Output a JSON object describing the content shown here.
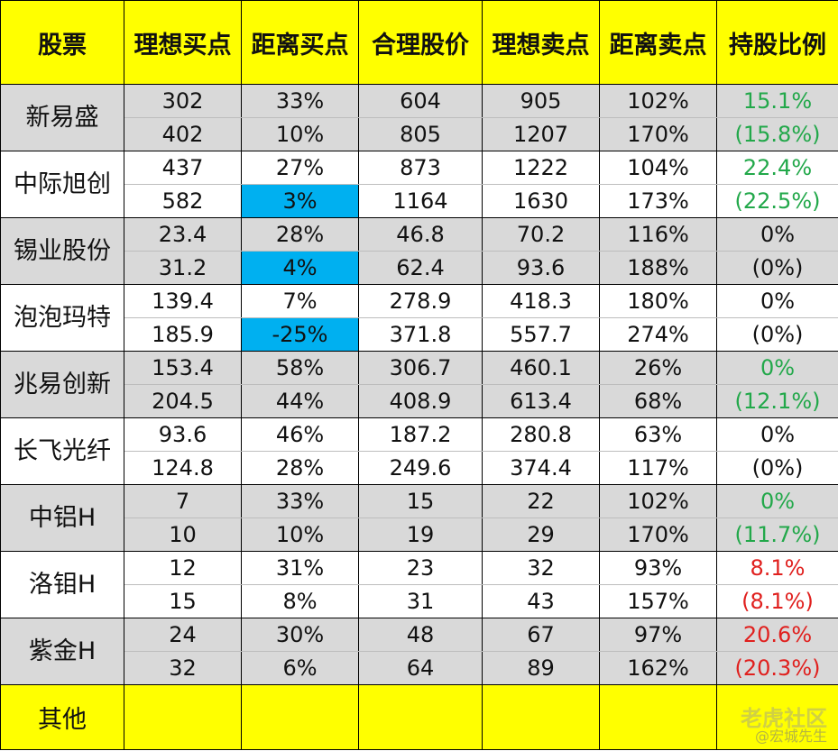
{
  "headers": [
    "股票",
    "理想买点",
    "距离买点",
    "合理股价",
    "理想卖点",
    "距离卖点",
    "持股比例"
  ],
  "stocks": [
    {
      "name": "新易盛",
      "shade": "grey",
      "ratio_color": "green",
      "rows": [
        {
          "buy": "302",
          "dist_buy": "33%",
          "fair": "604",
          "sell": "905",
          "dist_sell": "102%",
          "ratio": "15.1%"
        },
        {
          "buy": "402",
          "dist_buy": "10%",
          "fair": "805",
          "sell": "1207",
          "dist_sell": "170%",
          "ratio": "(15.8%)"
        }
      ]
    },
    {
      "name": "中际旭创",
      "shade": "white",
      "ratio_color": "green",
      "rows": [
        {
          "buy": "437",
          "dist_buy": "27%",
          "fair": "873",
          "sell": "1222",
          "dist_sell": "104%",
          "ratio": "22.4%"
        },
        {
          "buy": "582",
          "dist_buy": "3%",
          "fair": "1164",
          "sell": "1630",
          "dist_sell": "173%",
          "ratio": "(22.5%)",
          "highlight": true
        }
      ]
    },
    {
      "name": "锡业股份",
      "shade": "grey",
      "ratio_color": "black",
      "rows": [
        {
          "buy": "23.4",
          "dist_buy": "28%",
          "fair": "46.8",
          "sell": "70.2",
          "dist_sell": "116%",
          "ratio": "0%"
        },
        {
          "buy": "31.2",
          "dist_buy": "4%",
          "fair": "62.4",
          "sell": "93.6",
          "dist_sell": "188%",
          "ratio": "(0%)",
          "highlight": true
        }
      ]
    },
    {
      "name": "泡泡玛特",
      "shade": "white",
      "ratio_color": "black",
      "rows": [
        {
          "buy": "139.4",
          "dist_buy": "7%",
          "fair": "278.9",
          "sell": "418.3",
          "dist_sell": "180%",
          "ratio": "0%"
        },
        {
          "buy": "185.9",
          "dist_buy": "-25%",
          "fair": "371.8",
          "sell": "557.7",
          "dist_sell": "274%",
          "ratio": "(0%)",
          "highlight": true
        }
      ]
    },
    {
      "name": "兆易创新",
      "shade": "grey",
      "ratio_color": "green",
      "rows": [
        {
          "buy": "153.4",
          "dist_buy": "58%",
          "fair": "306.7",
          "sell": "460.1",
          "dist_sell": "26%",
          "ratio": "0%"
        },
        {
          "buy": "204.5",
          "dist_buy": "44%",
          "fair": "408.9",
          "sell": "613.4",
          "dist_sell": "68%",
          "ratio": "(12.1%)"
        }
      ]
    },
    {
      "name": "长飞光纤",
      "shade": "white",
      "ratio_color": "black",
      "rows": [
        {
          "buy": "93.6",
          "dist_buy": "46%",
          "fair": "187.2",
          "sell": "280.8",
          "dist_sell": "63%",
          "ratio": "0%"
        },
        {
          "buy": "124.8",
          "dist_buy": "28%",
          "fair": "249.6",
          "sell": "374.4",
          "dist_sell": "117%",
          "ratio": "(0%)"
        }
      ]
    },
    {
      "name": "中铝H",
      "shade": "grey",
      "ratio_color": "green",
      "rows": [
        {
          "buy": "7",
          "dist_buy": "33%",
          "fair": "15",
          "sell": "22",
          "dist_sell": "102%",
          "ratio": "0%"
        },
        {
          "buy": "10",
          "dist_buy": "10%",
          "fair": "19",
          "sell": "29",
          "dist_sell": "170%",
          "ratio": "(11.7%)"
        }
      ]
    },
    {
      "name": "洛钼H",
      "shade": "white",
      "ratio_color": "red",
      "rows": [
        {
          "buy": "12",
          "dist_buy": "31%",
          "fair": "23",
          "sell": "32",
          "dist_sell": "93%",
          "ratio": "8.1%"
        },
        {
          "buy": "15",
          "dist_buy": "8%",
          "fair": "31",
          "sell": "43",
          "dist_sell": "157%",
          "ratio": "(8.1%)"
        }
      ]
    },
    {
      "name": "紫金H",
      "shade": "grey",
      "ratio_color": "red",
      "rows": [
        {
          "buy": "24",
          "dist_buy": "30%",
          "fair": "48",
          "sell": "67",
          "dist_sell": "97%",
          "ratio": "20.6%"
        },
        {
          "buy": "32",
          "dist_buy": "6%",
          "fair": "64",
          "sell": "89",
          "dist_sell": "162%",
          "ratio": "(20.3%)"
        }
      ]
    }
  ],
  "footer": {
    "name": "其他"
  },
  "watermark": {
    "line1": "老虎社区",
    "line2": "@宏城先生"
  },
  "colors": {
    "header_bg": "#ffff00",
    "grey_row": "#d9d9d9",
    "highlight": "#00b0f0",
    "green": "#22a84a",
    "red": "#e0201e"
  }
}
